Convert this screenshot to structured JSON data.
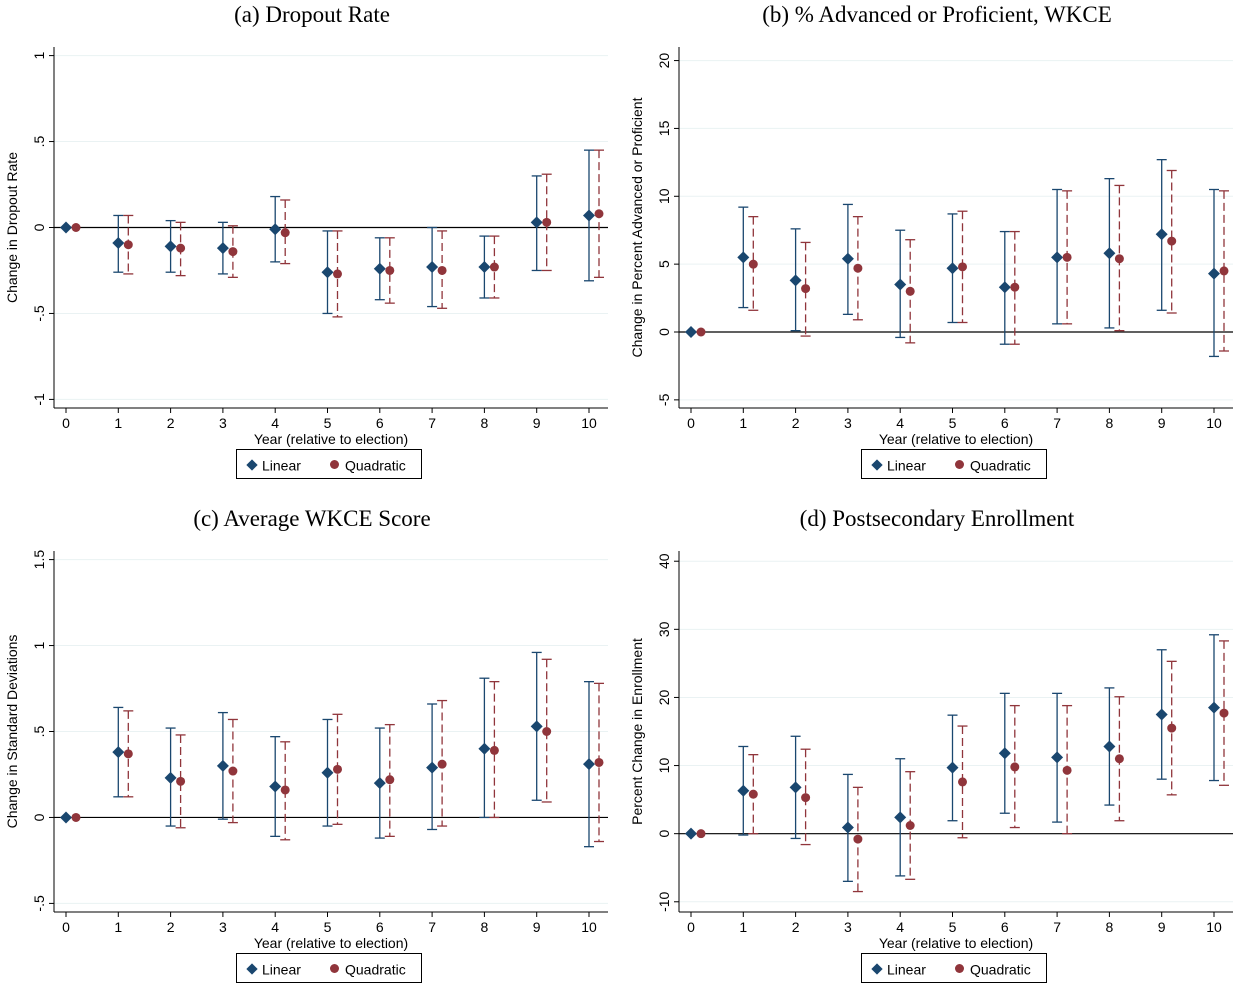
{
  "legend": {
    "linear": "Linear",
    "quadratic": "Quadratic"
  },
  "colors": {
    "linear": "#1a476f",
    "quadratic": "#90353b",
    "grid": "#eaf2f3"
  },
  "chart_data": [
    {
      "id": "a",
      "type": "scatter",
      "title": "(a) Dropout Rate",
      "xlabel": "Year (relative to election)",
      "ylabel": "Change in Dropout Rate",
      "x": [
        0,
        1,
        2,
        3,
        4,
        5,
        6,
        7,
        8,
        9,
        10
      ],
      "xticks": [
        "0",
        "1",
        "2",
        "3",
        "4",
        "5",
        "6",
        "7",
        "8",
        "9",
        "10"
      ],
      "yticks": [
        -1,
        -0.5,
        0,
        0.5,
        1
      ],
      "ytick_labels": [
        "-1",
        "-.5",
        "0",
        ".5",
        "1"
      ],
      "ylim": [
        -1.05,
        1.05
      ],
      "grid": true,
      "legend_position": "bottom",
      "series": [
        {
          "name": "Linear",
          "marker": "diamond",
          "values": [
            0,
            -0.09,
            -0.11,
            -0.12,
            -0.01,
            -0.26,
            -0.24,
            -0.23,
            -0.23,
            0.03,
            0.07
          ],
          "ci_low": [
            0,
            -0.26,
            -0.26,
            -0.27,
            -0.2,
            -0.5,
            -0.42,
            -0.46,
            -0.41,
            -0.25,
            -0.31
          ],
          "ci_high": [
            0,
            0.07,
            0.04,
            0.03,
            0.18,
            -0.02,
            -0.06,
            0.0,
            -0.05,
            0.3,
            0.45
          ]
        },
        {
          "name": "Quadratic",
          "marker": "circle",
          "values": [
            0,
            -0.1,
            -0.12,
            -0.14,
            -0.03,
            -0.27,
            -0.25,
            -0.25,
            -0.23,
            0.03,
            0.08
          ],
          "ci_low": [
            0,
            -0.27,
            -0.28,
            -0.29,
            -0.21,
            -0.52,
            -0.44,
            -0.47,
            -0.41,
            -0.25,
            -0.29
          ],
          "ci_high": [
            0,
            0.07,
            0.03,
            0.01,
            0.16,
            -0.02,
            -0.06,
            -0.02,
            -0.05,
            0.31,
            0.45
          ]
        }
      ]
    },
    {
      "id": "b",
      "type": "scatter",
      "title": "(b) % Advanced or Proficient, WKCE",
      "xlabel": "Year (relative to election)",
      "ylabel": "Change in Percent Advanced or Proficient",
      "x": [
        0,
        1,
        2,
        3,
        4,
        5,
        6,
        7,
        8,
        9,
        10
      ],
      "xticks": [
        "0",
        "1",
        "2",
        "3",
        "4",
        "5",
        "6",
        "7",
        "8",
        "9",
        "10"
      ],
      "yticks": [
        -5,
        0,
        5,
        10,
        15,
        20
      ],
      "ytick_labels": [
        "-5",
        "0",
        "5",
        "10",
        "15",
        "20"
      ],
      "ylim": [
        -5.6,
        21
      ],
      "grid": true,
      "legend_position": "bottom",
      "series": [
        {
          "name": "Linear",
          "marker": "diamond",
          "values": [
            0,
            5.5,
            3.8,
            5.4,
            3.5,
            4.7,
            3.3,
            5.5,
            5.8,
            7.2,
            4.3
          ],
          "ci_low": [
            0,
            1.8,
            0.1,
            1.3,
            -0.4,
            0.7,
            -0.9,
            0.6,
            0.3,
            1.6,
            -1.8
          ],
          "ci_high": [
            0,
            9.2,
            7.6,
            9.4,
            7.5,
            8.7,
            7.4,
            10.5,
            11.3,
            12.7,
            10.5
          ]
        },
        {
          "name": "Quadratic",
          "marker": "circle",
          "values": [
            0,
            5.0,
            3.2,
            4.7,
            3.0,
            4.8,
            3.3,
            5.5,
            5.4,
            6.7,
            4.5
          ],
          "ci_low": [
            0,
            1.6,
            -0.3,
            0.9,
            -0.8,
            0.7,
            -0.9,
            0.6,
            0.1,
            1.4,
            -1.4
          ],
          "ci_high": [
            0,
            8.5,
            6.6,
            8.5,
            6.8,
            8.9,
            7.4,
            10.4,
            10.8,
            11.9,
            10.4
          ]
        }
      ]
    },
    {
      "id": "c",
      "type": "scatter",
      "title": "(c) Average WKCE Score",
      "xlabel": "Year (relative to election)",
      "ylabel": "Change in Standard Deviations",
      "x": [
        0,
        1,
        2,
        3,
        4,
        5,
        6,
        7,
        8,
        9,
        10
      ],
      "xticks": [
        "0",
        "1",
        "2",
        "3",
        "4",
        "5",
        "6",
        "7",
        "8",
        "9",
        "10"
      ],
      "yticks": [
        -0.5,
        0,
        0.5,
        1,
        1.5
      ],
      "ytick_labels": [
        "-.5",
        "0",
        ".5",
        "1",
        "1.5"
      ],
      "ylim": [
        -0.55,
        1.55
      ],
      "grid": true,
      "legend_position": "bottom",
      "series": [
        {
          "name": "Linear",
          "marker": "diamond",
          "values": [
            0,
            0.38,
            0.23,
            0.3,
            0.18,
            0.26,
            0.2,
            0.29,
            0.4,
            0.53,
            0.31
          ],
          "ci_low": [
            0,
            0.12,
            -0.05,
            -0.01,
            -0.11,
            -0.05,
            -0.12,
            -0.07,
            0.0,
            0.1,
            -0.17
          ],
          "ci_high": [
            0,
            0.64,
            0.52,
            0.61,
            0.47,
            0.57,
            0.52,
            0.66,
            0.81,
            0.96,
            0.79
          ]
        },
        {
          "name": "Quadratic",
          "marker": "circle",
          "values": [
            0,
            0.37,
            0.21,
            0.27,
            0.16,
            0.28,
            0.22,
            0.31,
            0.39,
            0.5,
            0.32
          ],
          "ci_low": [
            0,
            0.12,
            -0.06,
            -0.03,
            -0.13,
            -0.04,
            -0.11,
            -0.05,
            0.0,
            0.09,
            -0.14
          ],
          "ci_high": [
            0,
            0.62,
            0.48,
            0.57,
            0.44,
            0.6,
            0.54,
            0.68,
            0.79,
            0.92,
            0.78
          ]
        }
      ]
    },
    {
      "id": "d",
      "type": "scatter",
      "title": "(d) Postsecondary Enrollment",
      "xlabel": "Year (relative to election)",
      "ylabel": "Percent Change in Enrollment",
      "x": [
        0,
        1,
        2,
        3,
        4,
        5,
        6,
        7,
        8,
        9,
        10
      ],
      "xticks": [
        "0",
        "1",
        "2",
        "3",
        "4",
        "5",
        "6",
        "7",
        "8",
        "9",
        "10"
      ],
      "yticks": [
        -10,
        0,
        10,
        20,
        30,
        40
      ],
      "ytick_labels": [
        "-10",
        "0",
        "10",
        "20",
        "30",
        "40"
      ],
      "ylim": [
        -11.5,
        41.5
      ],
      "grid": true,
      "legend_position": "bottom",
      "series": [
        {
          "name": "Linear",
          "marker": "diamond",
          "values": [
            0,
            6.3,
            6.8,
            0.9,
            2.4,
            9.7,
            11.8,
            11.2,
            12.8,
            17.5,
            18.5
          ],
          "ci_low": [
            0,
            -0.2,
            -0.7,
            -7.0,
            -6.2,
            1.9,
            3.0,
            1.7,
            4.2,
            8.0,
            7.8
          ],
          "ci_high": [
            0,
            12.8,
            14.3,
            8.7,
            11.0,
            17.4,
            20.6,
            20.6,
            21.4,
            27.0,
            29.2
          ]
        },
        {
          "name": "Quadratic",
          "marker": "circle",
          "values": [
            0,
            5.8,
            5.3,
            -0.8,
            1.2,
            7.6,
            9.8,
            9.3,
            11.0,
            15.5,
            17.7
          ],
          "ci_low": [
            0,
            0.0,
            -1.6,
            -8.5,
            -6.7,
            -0.6,
            0.9,
            0.0,
            1.9,
            5.7,
            7.1
          ],
          "ci_high": [
            0,
            11.6,
            12.4,
            6.8,
            9.1,
            15.8,
            18.8,
            18.8,
            20.1,
            25.3,
            28.3
          ]
        }
      ]
    }
  ]
}
